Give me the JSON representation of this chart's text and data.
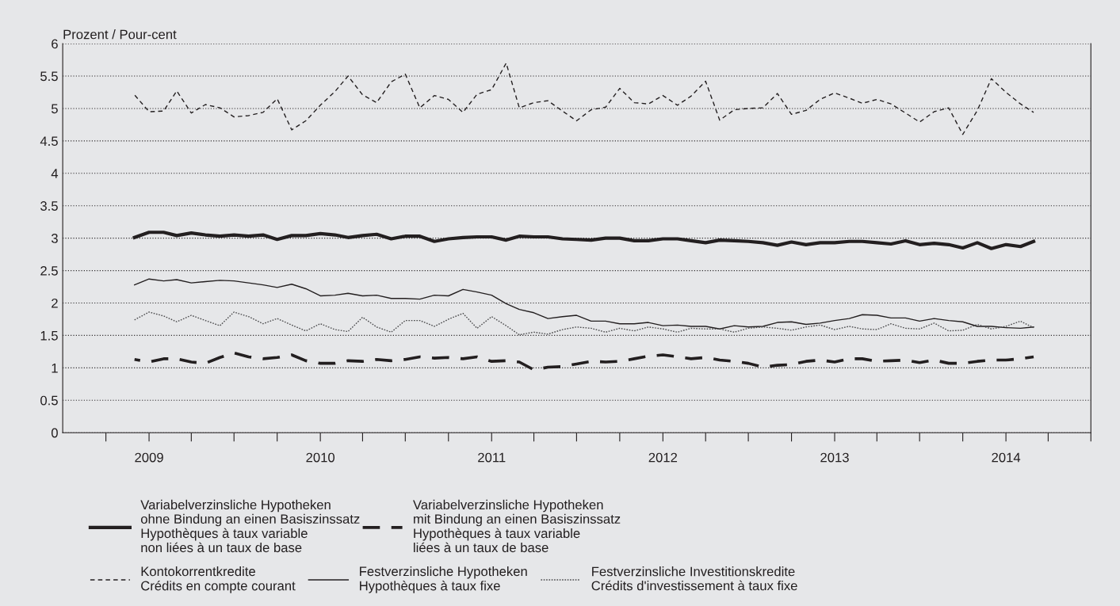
{
  "chart_data": {
    "type": "line",
    "ylabel": "Prozent / Pour-cent",
    "x": [
      "2008-12",
      "2009-01",
      "2009-02",
      "2009-03",
      "2009-04",
      "2009-05",
      "2009-06",
      "2009-07",
      "2009-08",
      "2009-09",
      "2009-10",
      "2009-11",
      "2009-12",
      "2010-01",
      "2010-02",
      "2010-03",
      "2010-04",
      "2010-05",
      "2010-06",
      "2010-07",
      "2010-08",
      "2010-09",
      "2010-10",
      "2010-11",
      "2010-12",
      "2011-01",
      "2011-02",
      "2011-03",
      "2011-04",
      "2011-05",
      "2011-06",
      "2011-07",
      "2011-08",
      "2011-09",
      "2011-10",
      "2011-11",
      "2011-12",
      "2012-01",
      "2012-02",
      "2012-03",
      "2012-04",
      "2012-05",
      "2012-06",
      "2012-07",
      "2012-08",
      "2012-09",
      "2012-10",
      "2012-11",
      "2012-12",
      "2013-01",
      "2013-02",
      "2013-03",
      "2013-04",
      "2013-05",
      "2013-06",
      "2013-07",
      "2013-08",
      "2013-09",
      "2013-10",
      "2013-11",
      "2013-12",
      "2014-01",
      "2014-02",
      "2014-03"
    ],
    "series": [
      {
        "name": "Variabelverzinsliche Hypotheken\nohne Bindung an einen Basiszinssatz\nHypothèques à taux variable\nnon liées à un taux de base",
        "color": "#231f20",
        "line_style": "solid",
        "values": [
          3.01,
          3.09,
          3.09,
          3.04,
          3.08,
          3.05,
          3.03,
          3.05,
          3.03,
          3.05,
          2.98,
          3.04,
          3.04,
          3.07,
          3.05,
          3.01,
          3.04,
          3.06,
          2.99,
          3.03,
          3.03,
          2.95,
          2.99,
          3.01,
          3.02,
          3.02,
          2.97,
          3.03,
          3.02,
          3.02,
          2.99,
          2.98,
          2.97,
          3.0,
          3.0,
          2.96,
          2.96,
          2.99,
          2.99,
          2.96,
          2.93,
          2.97,
          2.96,
          2.95,
          2.93,
          2.89,
          2.94,
          2.9,
          2.93,
          2.93,
          2.95,
          2.95,
          2.93,
          2.91,
          2.96,
          2.9,
          2.92,
          2.9,
          2.85,
          2.93,
          2.84,
          2.9,
          2.87,
          2.95
        ]
      },
      {
        "name": "Variabelverzinsliche Hypotheken\nmit Bindung an einen Basiszinssatz\nHypothèques à taux variable\nliées à un taux de base",
        "color": "#231f20",
        "line_style": "dashed",
        "values": [
          1.13,
          1.09,
          1.14,
          1.14,
          1.09,
          1.07,
          1.16,
          1.23,
          1.17,
          1.14,
          1.16,
          1.2,
          1.11,
          1.07,
          1.07,
          1.11,
          1.1,
          1.13,
          1.11,
          1.13,
          1.17,
          1.15,
          1.16,
          1.14,
          1.17,
          1.1,
          1.11,
          1.09,
          0.97,
          1.01,
          1.02,
          1.06,
          1.1,
          1.09,
          1.1,
          1.14,
          1.18,
          1.2,
          1.17,
          1.14,
          1.16,
          1.12,
          1.1,
          1.07,
          1.01,
          1.04,
          1.05,
          1.1,
          1.12,
          1.09,
          1.14,
          1.14,
          1.1,
          1.11,
          1.12,
          1.08,
          1.12,
          1.07,
          1.07,
          1.1,
          1.12,
          1.12,
          1.14,
          1.17
        ]
      },
      {
        "name": "Kontokorrentkredite\nCrédits en compte courant",
        "color": "#231f20",
        "line_style": "dashed",
        "values": [
          5.21,
          4.95,
          4.96,
          5.27,
          4.93,
          5.06,
          5.01,
          4.87,
          4.89,
          4.94,
          5.15,
          4.67,
          4.81,
          5.05,
          5.26,
          5.5,
          5.21,
          5.09,
          5.41,
          5.53,
          5.01,
          5.2,
          5.14,
          4.94,
          5.22,
          5.29,
          5.7,
          5.01,
          5.09,
          5.12,
          4.96,
          4.81,
          4.98,
          5.02,
          5.31,
          5.09,
          5.07,
          5.2,
          5.05,
          5.19,
          5.42,
          4.82,
          4.98,
          5.0,
          5.01,
          5.23,
          4.91,
          4.97,
          5.14,
          5.24,
          5.16,
          5.08,
          5.14,
          5.07,
          4.93,
          4.79,
          4.95,
          5.01,
          4.6,
          4.97,
          5.46,
          5.25,
          5.07,
          4.94
        ]
      },
      {
        "name": "Festverzinsliche Hypotheken\nHypothèques à taux fixe",
        "color": "#231f20",
        "line_style": "solid",
        "values": [
          2.28,
          2.37,
          2.34,
          2.36,
          2.31,
          2.33,
          2.35,
          2.34,
          2.31,
          2.28,
          2.24,
          2.29,
          2.22,
          2.11,
          2.12,
          2.15,
          2.11,
          2.12,
          2.07,
          2.07,
          2.06,
          2.12,
          2.11,
          2.21,
          2.17,
          2.12,
          1.99,
          1.9,
          1.85,
          1.76,
          1.79,
          1.81,
          1.72,
          1.72,
          1.68,
          1.68,
          1.7,
          1.65,
          1.66,
          1.64,
          1.64,
          1.6,
          1.65,
          1.63,
          1.64,
          1.7,
          1.71,
          1.67,
          1.69,
          1.73,
          1.76,
          1.82,
          1.81,
          1.77,
          1.77,
          1.72,
          1.76,
          1.73,
          1.71,
          1.64,
          1.64,
          1.62,
          1.61,
          1.63
        ]
      },
      {
        "name": "Festverzinsliche Investitionskredite\nCrédits d'investissement à taux fixe",
        "color": "#4d4d4f",
        "line_style": "dotted",
        "values": [
          1.74,
          1.86,
          1.8,
          1.71,
          1.81,
          1.73,
          1.65,
          1.86,
          1.79,
          1.68,
          1.76,
          1.66,
          1.57,
          1.68,
          1.59,
          1.56,
          1.78,
          1.63,
          1.55,
          1.73,
          1.73,
          1.64,
          1.75,
          1.84,
          1.61,
          1.79,
          1.65,
          1.51,
          1.55,
          1.52,
          1.59,
          1.63,
          1.61,
          1.55,
          1.61,
          1.57,
          1.63,
          1.6,
          1.55,
          1.61,
          1.6,
          1.6,
          1.55,
          1.61,
          1.63,
          1.61,
          1.58,
          1.63,
          1.66,
          1.59,
          1.64,
          1.6,
          1.59,
          1.68,
          1.61,
          1.6,
          1.69,
          1.57,
          1.58,
          1.67,
          1.6,
          1.64,
          1.72,
          1.62
        ]
      }
    ],
    "xlim": [
      "2008-07",
      "2014-07"
    ],
    "xticks": [
      {
        "value": "2008-10",
        "label": null
      },
      {
        "value": "2009-01",
        "label": "2009"
      },
      {
        "value": "2009-04",
        "label": null
      },
      {
        "value": "2009-07",
        "label": null
      },
      {
        "value": "2009-10",
        "label": null
      },
      {
        "value": "2010-01",
        "label": "2010"
      },
      {
        "value": "2010-04",
        "label": null
      },
      {
        "value": "2010-07",
        "label": null
      },
      {
        "value": "2010-10",
        "label": null
      },
      {
        "value": "2011-01",
        "label": "2011"
      },
      {
        "value": "2011-04",
        "label": null
      },
      {
        "value": "2011-07",
        "label": null
      },
      {
        "value": "2011-10",
        "label": null
      },
      {
        "value": "2012-01",
        "label": "2012"
      },
      {
        "value": "2012-04",
        "label": null
      },
      {
        "value": "2012-07",
        "label": null
      },
      {
        "value": "2012-10",
        "label": null
      },
      {
        "value": "2013-01",
        "label": "2013"
      },
      {
        "value": "2013-04",
        "label": null
      },
      {
        "value": "2013-07",
        "label": null
      },
      {
        "value": "2013-10",
        "label": null
      },
      {
        "value": "2014-01",
        "label": "2014"
      },
      {
        "value": "2014-04",
        "label": null
      },
      {
        "value": "2014-07",
        "label": null
      }
    ],
    "ylim": [
      0,
      6
    ],
    "yticks": [
      0,
      0.5,
      1,
      1.5,
      2,
      2.5,
      3,
      3.5,
      4,
      4.5,
      5,
      5.5,
      6
    ],
    "grid": "y",
    "legend": "bottom"
  }
}
